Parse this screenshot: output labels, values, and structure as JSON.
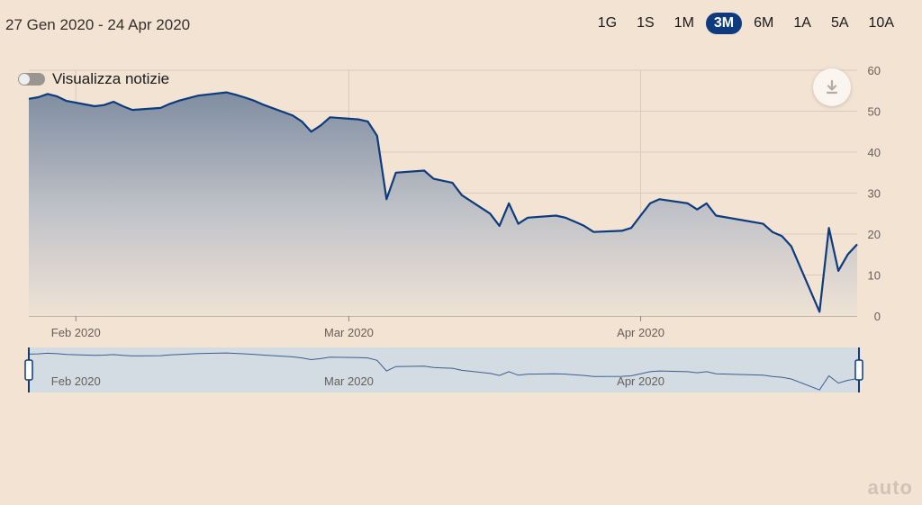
{
  "header": {
    "date_range": "27 Gen 2020 - 24 Apr 2020",
    "ranges": [
      "1G",
      "1S",
      "1M",
      "3M",
      "6M",
      "1A",
      "5A",
      "10A"
    ],
    "active_range": "3M"
  },
  "news_toggle": {
    "label": "Visualizza notizie",
    "on": false
  },
  "download": {
    "icon": "download-icon"
  },
  "watermark": "auto",
  "colors": {
    "background": "#f3e3d3",
    "line": "#0d3b7d",
    "navigator_fill": "#d3dbe3"
  },
  "chart_data": {
    "type": "area",
    "x_ticks": [
      "Feb 2020",
      "Mar 2020",
      "Apr 2020"
    ],
    "y_ticks": [
      0,
      10,
      20,
      30,
      40,
      50,
      60
    ],
    "ylim": [
      0,
      60
    ],
    "xlim": [
      "2020-01-27",
      "2020-04-24"
    ],
    "grid": true,
    "series": [
      {
        "x": [
          "2020-01-27",
          "2020-01-28",
          "2020-01-29",
          "2020-01-30",
          "2020-01-31",
          "2020-02-03",
          "2020-02-04",
          "2020-02-05",
          "2020-02-06",
          "2020-02-07",
          "2020-02-10",
          "2020-02-11",
          "2020-02-12",
          "2020-02-13",
          "2020-02-14",
          "2020-02-17",
          "2020-02-18",
          "2020-02-19",
          "2020-02-20",
          "2020-02-21",
          "2020-02-24",
          "2020-02-25",
          "2020-02-26",
          "2020-02-27",
          "2020-02-28",
          "2020-03-02",
          "2020-03-03",
          "2020-03-04",
          "2020-03-05",
          "2020-03-06",
          "2020-03-09",
          "2020-03-10",
          "2020-03-11",
          "2020-03-12",
          "2020-03-13",
          "2020-03-16",
          "2020-03-17",
          "2020-03-18",
          "2020-03-19",
          "2020-03-20",
          "2020-03-23",
          "2020-03-24",
          "2020-03-25",
          "2020-03-26",
          "2020-03-27",
          "2020-03-30",
          "2020-03-31",
          "2020-04-01",
          "2020-04-02",
          "2020-04-03",
          "2020-04-06",
          "2020-04-07",
          "2020-04-08",
          "2020-04-09",
          "2020-04-14",
          "2020-04-15",
          "2020-04-16",
          "2020-04-17",
          "2020-04-20",
          "2020-04-21",
          "2020-04-22",
          "2020-04-23",
          "2020-04-24"
        ],
        "values": [
          53.0,
          53.4,
          54.2,
          53.6,
          52.5,
          51.2,
          51.5,
          52.3,
          51.2,
          50.3,
          50.8,
          51.8,
          52.6,
          53.2,
          53.8,
          54.6,
          54.0,
          53.3,
          52.5,
          51.5,
          49.0,
          47.5,
          45.0,
          46.5,
          48.5,
          48.0,
          47.5,
          44.0,
          28.5,
          35.0,
          35.5,
          33.5,
          33.0,
          32.5,
          29.5,
          25.0,
          22.0,
          27.5,
          22.5,
          24.0,
          24.5,
          24.0,
          23.0,
          22.0,
          20.5,
          20.8,
          21.5,
          24.5,
          27.5,
          28.5,
          27.5,
          26.0,
          27.5,
          24.5,
          22.5,
          20.5,
          19.5,
          17.0,
          1.0,
          21.5,
          11.0,
          15.0,
          17.5
        ]
      }
    ]
  }
}
